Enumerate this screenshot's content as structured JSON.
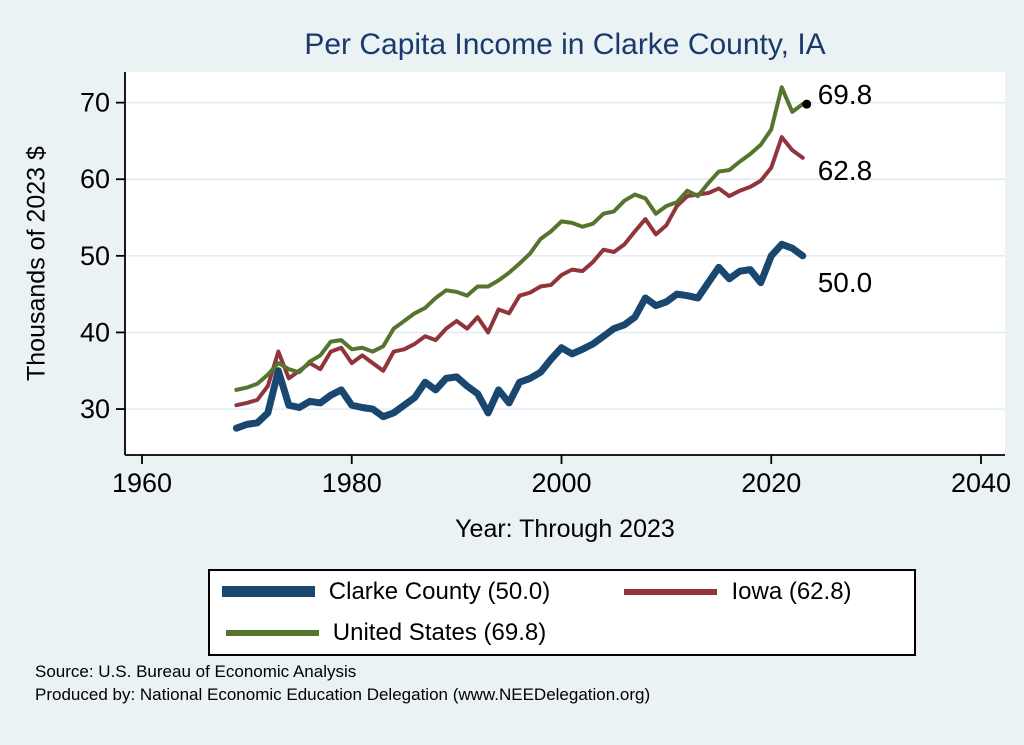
{
  "chart_data": {
    "type": "line",
    "title": "Per Capita Income in Clarke County, IA",
    "xlabel": "Year: Through 2023",
    "ylabel": "Thousands of 2023 $",
    "x_ticks": [
      1960,
      1980,
      2000,
      2020,
      2040
    ],
    "y_ticks": [
      30,
      40,
      50,
      60,
      70
    ],
    "xlim": [
      1958,
      2042
    ],
    "ylim": [
      24,
      74
    ],
    "grid": "horizontal",
    "legend_position": "bottom",
    "background": "#eaf2f3",
    "plot_background": "#ffffff",
    "grid_color": "#dfe9f3",
    "years": [
      1969,
      1970,
      1971,
      1972,
      1973,
      1974,
      1975,
      1976,
      1977,
      1978,
      1979,
      1980,
      1981,
      1982,
      1983,
      1984,
      1985,
      1986,
      1987,
      1988,
      1989,
      1990,
      1991,
      1992,
      1993,
      1994,
      1995,
      1996,
      1997,
      1998,
      1999,
      2000,
      2001,
      2002,
      2003,
      2004,
      2005,
      2006,
      2007,
      2008,
      2009,
      2010,
      2011,
      2012,
      2013,
      2014,
      2015,
      2016,
      2017,
      2018,
      2019,
      2020,
      2021,
      2022,
      2023
    ],
    "series": [
      {
        "name": "Clarke County",
        "legend_label": "Clarke County (50.0)",
        "color": "#1a476f",
        "width": 7,
        "end_label": "50.0",
        "end_dot": false,
        "values": [
          27.5,
          28.0,
          28.2,
          29.5,
          35.0,
          30.5,
          30.2,
          31.0,
          30.8,
          31.8,
          32.5,
          30.5,
          30.2,
          30.0,
          29.0,
          29.5,
          30.5,
          31.5,
          33.5,
          32.5,
          34.0,
          34.2,
          33.0,
          32.0,
          29.5,
          32.5,
          30.8,
          33.5,
          34.0,
          34.8,
          36.5,
          38.0,
          37.2,
          37.8,
          38.5,
          39.5,
          40.5,
          41.0,
          42.0,
          44.5,
          43.5,
          44.0,
          45.0,
          44.8,
          44.5,
          46.5,
          48.5,
          47.0,
          48.0,
          48.2,
          46.5,
          50.0,
          51.5,
          51.0,
          50.0
        ]
      },
      {
        "name": "Iowa",
        "legend_label": "Iowa (62.8)",
        "color": "#90353b",
        "width": 4,
        "end_label": "62.8",
        "end_dot": false,
        "values": [
          30.5,
          30.8,
          31.2,
          33.0,
          37.5,
          34.0,
          35.0,
          36.0,
          35.2,
          37.5,
          38.0,
          36.0,
          37.0,
          36.0,
          35.0,
          37.5,
          37.8,
          38.5,
          39.5,
          39.0,
          40.5,
          41.5,
          40.5,
          42.0,
          40.0,
          43.0,
          42.5,
          44.8,
          45.2,
          46.0,
          46.2,
          47.5,
          48.2,
          48.0,
          49.2,
          50.8,
          50.5,
          51.5,
          53.2,
          54.8,
          52.8,
          54.0,
          56.5,
          57.8,
          58.0,
          58.2,
          58.8,
          57.8,
          58.5,
          59.0,
          59.8,
          61.5,
          65.5,
          63.8,
          62.8
        ]
      },
      {
        "name": "United States",
        "legend_label": "United States (69.8)",
        "color": "#55752f",
        "width": 4,
        "end_label": "69.8",
        "end_dot": true,
        "values": [
          32.5,
          32.8,
          33.3,
          34.5,
          36.0,
          35.2,
          34.8,
          36.2,
          37.0,
          38.8,
          39.0,
          37.8,
          38.0,
          37.5,
          38.2,
          40.5,
          41.5,
          42.5,
          43.2,
          44.5,
          45.5,
          45.3,
          44.8,
          46.0,
          46.0,
          46.8,
          47.8,
          49.0,
          50.3,
          52.2,
          53.2,
          54.5,
          54.3,
          53.8,
          54.2,
          55.5,
          55.8,
          57.2,
          58.0,
          57.5,
          55.5,
          56.5,
          57.0,
          58.5,
          57.8,
          59.5,
          61.0,
          61.2,
          62.3,
          63.3,
          64.5,
          66.5,
          72.0,
          68.8,
          69.8
        ]
      }
    ]
  },
  "footer": {
    "source": "Source: U.S. Bureau of Economic Analysis",
    "produced": "Produced by: National Economic Education Delegation (www.NEEDelegation.org)"
  }
}
